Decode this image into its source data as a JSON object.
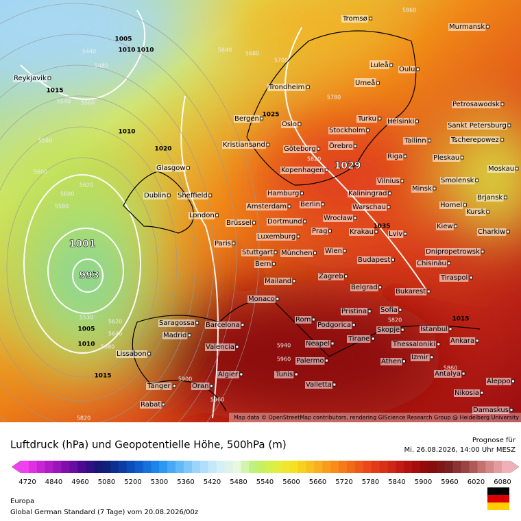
{
  "header": {
    "title": "Luftdruck (hPa) und Geopotentielle Höhe, 500hPa (m)",
    "forecast_label": "Prognose für",
    "forecast_date": "Mi. 26.08.2026, 14:00 Uhr MESZ"
  },
  "colorbar": {
    "ticks": [
      "4720",
      "4840",
      "4960",
      "5080",
      "5200",
      "5300",
      "5360",
      "5420",
      "5480",
      "5540",
      "5600",
      "5660",
      "5720",
      "5780",
      "5840",
      "5900",
      "5960",
      "6020",
      "6080"
    ]
  },
  "map": {
    "attribution": "Map data © OpenStreetMap contributors, rendering GIScience Research Group @ Heidelberg University",
    "cities": [
      "Tromsø",
      "Murmansk",
      "Luleå",
      "Oulu",
      "Umeå",
      "Reykjavik",
      "Trondheim",
      "Petrosawodsk",
      "Bergen",
      "Oslo",
      "Turku",
      "Helsinki",
      "Sankt Petersburg",
      "Stockholm",
      "Kristiansand",
      "Göteborg",
      "Örebro",
      "Tallinn",
      "Tscherepowez",
      "Glasgow",
      "Kopenhagen",
      "Riga",
      "Pleskau",
      "Moskau",
      "Dublin",
      "Sheffield",
      "Hamburg",
      "Vilnius",
      "Minsk",
      "Smolensk",
      "Amsterdam",
      "Berlin",
      "Kaliningrad",
      "Brjansk",
      "London",
      "Brüssel",
      "Dortmund",
      "Warschau",
      "Homel",
      "Kursk",
      "Wrocław",
      "Luxemburg",
      "Prag",
      "Krakau",
      "Lviv",
      "Kiew",
      "Charkiw",
      "Paris",
      "Stuttgart",
      "München",
      "Wien",
      "Dnipropetrowsk",
      "Bern",
      "Budapest",
      "Chisinău",
      "Mailand",
      "Zagreb",
      "Tiraspol",
      "Belgrad",
      "Bukarest",
      "Monaco",
      "Pristina",
      "Sofia",
      "Saragossa",
      "Rom",
      "Podgorica",
      "Barcelona",
      "Skopje",
      "Istanbul",
      "Madrid",
      "Tirane",
      "Thessaloniki",
      "Ankara",
      "Valencia",
      "Neapel",
      "Lissabon",
      "Izmir",
      "Palermo",
      "Athen",
      "Antalya",
      "Algier",
      "Tunis",
      "Aleppo",
      "Tanger",
      "Oran",
      "Valletta",
      "Nikosia",
      "Rabat",
      "Damaskus"
    ],
    "pressure_labels": [
      "1005",
      "1010",
      "1010",
      "1015",
      "1010",
      "1020",
      "1029",
      "1001",
      "993",
      "1005",
      "1010",
      "1015",
      "1035",
      "1015",
      "1025"
    ],
    "height_labels": [
      "5440",
      "5480",
      "5540",
      "5560",
      "5580",
      "5600",
      "5620",
      "5600",
      "5580",
      "5640",
      "5680",
      "5700",
      "5780",
      "5820",
      "5860",
      "5530",
      "5620",
      "5640",
      "5680",
      "5940",
      "5960",
      "5900",
      "5960",
      "5820",
      "5860",
      "5820"
    ]
  },
  "footer": {
    "region": "Europa",
    "model": "Global German Standard (7 Tage) vom 20.08.2026/00z"
  }
}
